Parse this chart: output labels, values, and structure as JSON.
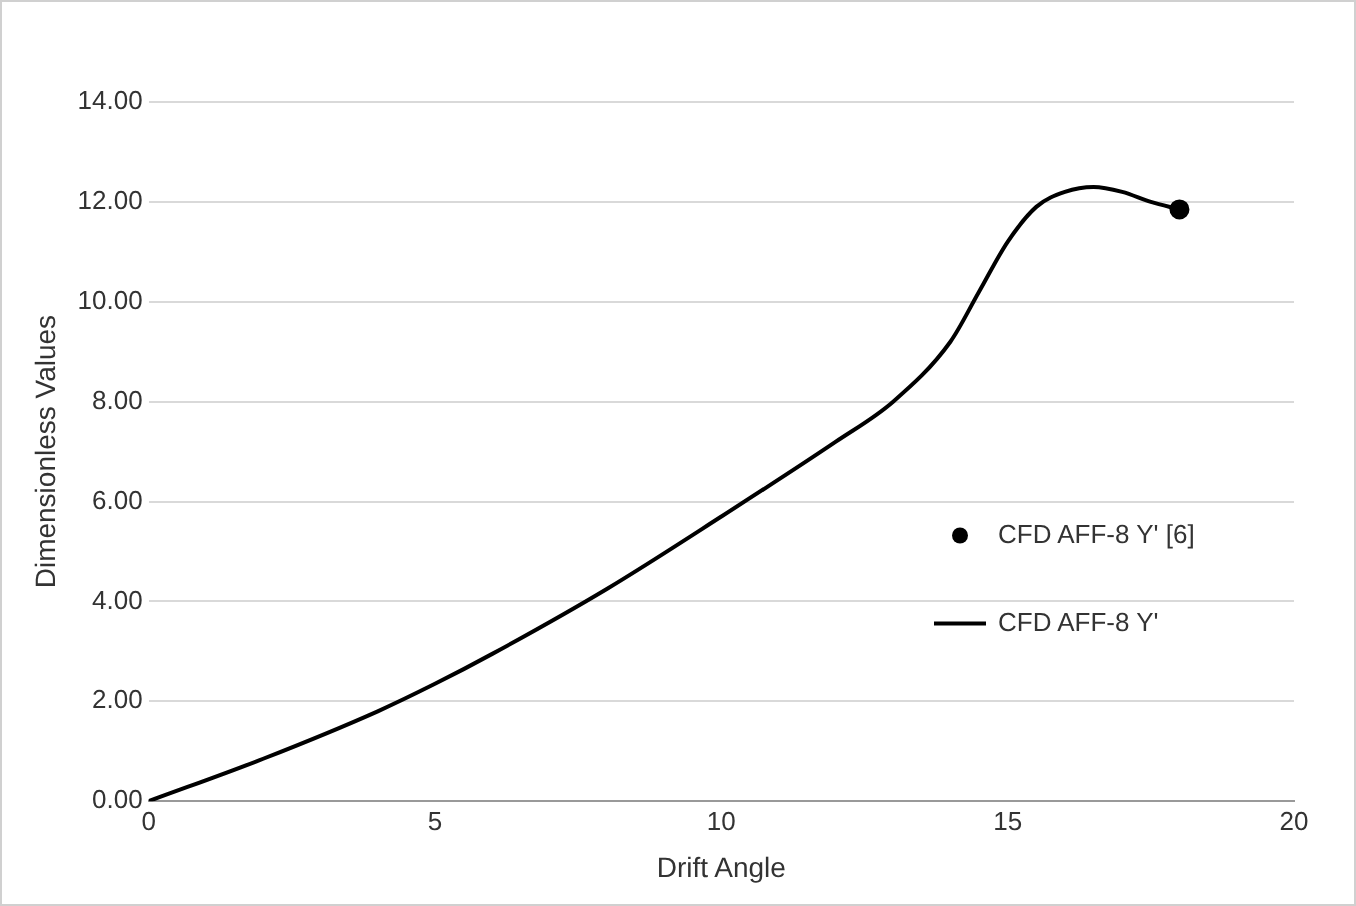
{
  "chart_data": {
    "type": "line",
    "xlabel": "Drift Angle",
    "ylabel": "Dimensionless Values",
    "xlim": [
      0,
      20
    ],
    "xticks": [
      0,
      5,
      10,
      15,
      20
    ],
    "ylim": [
      0,
      14
    ],
    "yticks": [
      {
        "value": 0,
        "label": "0.00"
      },
      {
        "value": 2,
        "label": "2.00"
      },
      {
        "value": 4,
        "label": "4.00"
      },
      {
        "value": 6,
        "label": "6.00"
      },
      {
        "value": 8,
        "label": "8.00"
      },
      {
        "value": 10,
        "label": "10.00"
      },
      {
        "value": 12,
        "label": "12.00"
      },
      {
        "value": 14,
        "label": "14.00"
      }
    ],
    "grid": "y",
    "legend": "right",
    "series": [
      {
        "name": "CFD AFF-8 Y' [6]",
        "type": "scatter",
        "marker": "circle",
        "color": "#000000",
        "x": [
          18
        ],
        "values": [
          11.85
        ]
      },
      {
        "name": "CFD AFF-8 Y'",
        "marker": "none",
        "color": "#000000",
        "x": [
          0,
          2,
          4,
          5,
          6,
          8,
          10,
          12,
          13,
          14,
          14.5,
          15,
          15.5,
          16,
          16.5,
          17,
          17.5,
          18
        ],
        "values": [
          0,
          0.85,
          1.8,
          2.35,
          2.95,
          4.25,
          5.7,
          7.2,
          8.0,
          9.2,
          10.2,
          11.2,
          11.9,
          12.2,
          12.3,
          12.2,
          12.0,
          11.85
        ]
      }
    ]
  }
}
